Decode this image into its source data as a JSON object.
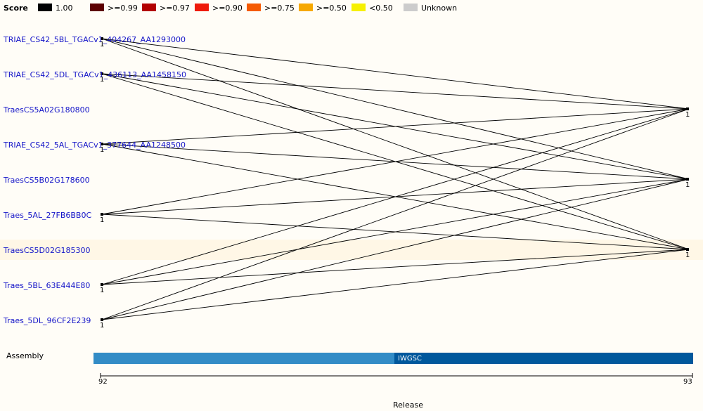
{
  "legend": {
    "title": "Score",
    "items": [
      {
        "label": "1.00",
        "color": "#000000"
      },
      {
        "label": ">=0.99",
        "color": "#5c0000"
      },
      {
        "label": ">=0.97",
        "color": "#b20000"
      },
      {
        "label": ">=0.90",
        "color": "#ee1a0a"
      },
      {
        "label": ">=0.75",
        "color": "#f55a00"
      },
      {
        "label": ">=0.50",
        "color": "#f6a800"
      },
      {
        "label": "<0.50",
        "color": "#f6f000"
      },
      {
        "label": "Unknown",
        "color": "#cccccc"
      }
    ]
  },
  "genes": [
    {
      "label": "TRIAE_CS42_5BL_TGACv1_404267_AA1293000",
      "score": "1"
    },
    {
      "label": "TRIAE_CS42_5DL_TGACv1_436113_AA1458150",
      "score": "1"
    },
    {
      "label": "TraesCS5A02G180800",
      "score": ""
    },
    {
      "label": "TRIAE_CS42_5AL_TGACv1_377644_AA1248500",
      "score": "1"
    },
    {
      "label": "TraesCS5B02G178600",
      "score": ""
    },
    {
      "label": "Traes_5AL_27FB6BB0C",
      "score": "1"
    },
    {
      "label": "TraesCS5D02G185300",
      "score": ""
    },
    {
      "label": "Traes_5BL_63E444E80",
      "score": "1"
    },
    {
      "label": "Traes_5DL_96CF2E239",
      "score": "1"
    }
  ],
  "targets": [
    {
      "score": "1"
    },
    {
      "score": "1"
    },
    {
      "score": "1"
    }
  ],
  "links": [
    [
      0,
      0
    ],
    [
      0,
      1
    ],
    [
      0,
      2
    ],
    [
      1,
      0
    ],
    [
      1,
      1
    ],
    [
      1,
      2
    ],
    [
      3,
      0
    ],
    [
      3,
      1
    ],
    [
      3,
      2
    ],
    [
      5,
      0
    ],
    [
      5,
      1
    ],
    [
      5,
      2
    ],
    [
      7,
      0
    ],
    [
      7,
      1
    ],
    [
      7,
      2
    ],
    [
      8,
      0
    ],
    [
      8,
      1
    ],
    [
      8,
      2
    ]
  ],
  "highlighted_gene": "TraesCS5D02G185300",
  "assembly": {
    "label": "Assembly",
    "segments": [
      {
        "name": "",
        "color": "#338cc6"
      },
      {
        "name": "IWGSC",
        "color": "#00589c"
      }
    ]
  },
  "release": {
    "title": "Release",
    "ticks": [
      "92",
      "93"
    ]
  }
}
